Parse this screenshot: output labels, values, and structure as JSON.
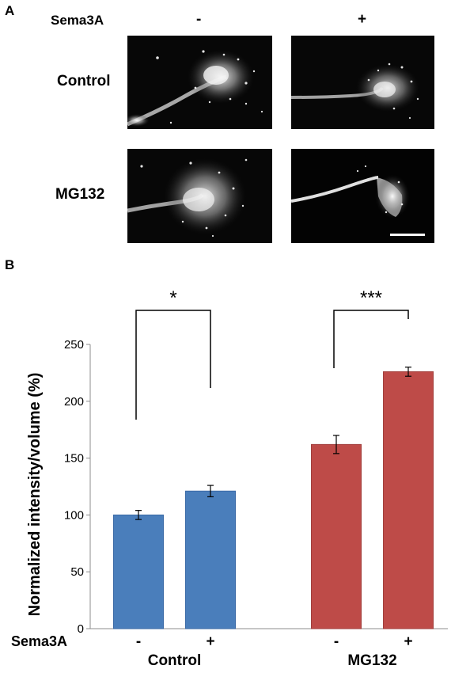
{
  "figure": {
    "panel_a": {
      "letter": "A",
      "column_header": "Sema3A",
      "columns": [
        "-",
        "+"
      ],
      "rows": [
        "Control",
        "MG132"
      ],
      "images": [
        {
          "row": "Control",
          "column": "-",
          "content": "fluorescence micrograph of growth cone"
        },
        {
          "row": "Control",
          "column": "+",
          "content": "fluorescence micrograph of growth cone"
        },
        {
          "row": "MG132",
          "column": "-",
          "content": "fluorescence micrograph of growth cone"
        },
        {
          "row": "MG132",
          "column": "+",
          "content": "fluorescence micrograph of growth cone with scale bar"
        }
      ]
    },
    "panel_b": {
      "letter": "B"
    }
  },
  "chart_data": {
    "type": "bar",
    "title": "",
    "ylabel": "Normalized intensity/volume (%)",
    "ylim": [
      0,
      250
    ],
    "yticks": [
      0,
      50,
      100,
      150,
      200,
      250
    ],
    "x_row_label": "Sema3A",
    "groups": [
      {
        "name": "Control",
        "color": "#4a7ebb",
        "bars": [
          {
            "label": "-",
            "value": 100,
            "error": 4
          },
          {
            "label": "+",
            "value": 121,
            "error": 5
          }
        ],
        "significance": "*"
      },
      {
        "name": "MG132",
        "color": "#be4b48",
        "bars": [
          {
            "label": "-",
            "value": 162,
            "error": 8
          },
          {
            "label": "+",
            "value": 226,
            "error": 4
          }
        ],
        "significance": "***"
      }
    ],
    "grid": false,
    "legend": "none"
  }
}
